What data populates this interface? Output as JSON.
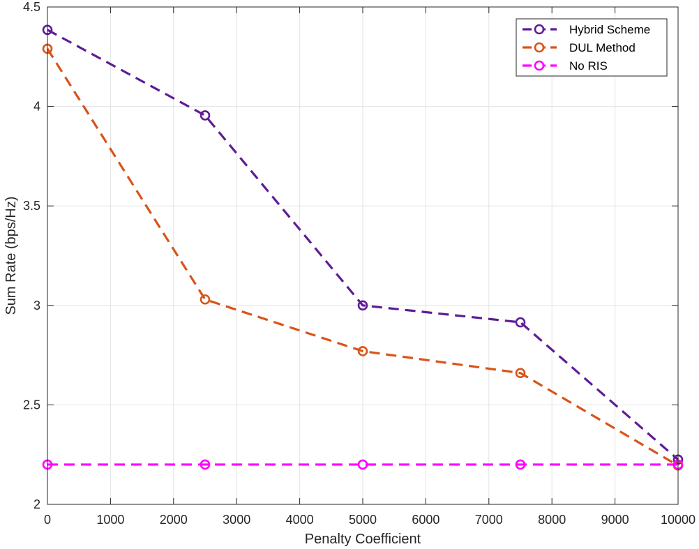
{
  "chart_data": {
    "type": "line",
    "title": "",
    "xlabel": "Penalty Coefficient",
    "ylabel": "Sum Rate (bps/Hz)",
    "xlim": [
      0,
      10000
    ],
    "ylim": [
      2,
      4.5
    ],
    "xticks": [
      0,
      1000,
      2000,
      3000,
      4000,
      5000,
      6000,
      7000,
      8000,
      9000,
      10000
    ],
    "xtick_labels": [
      "0",
      "1000",
      "2000",
      "3000",
      "4000",
      "5000",
      "6000",
      "7000",
      "8000",
      "9000",
      "10000"
    ],
    "yticks": [
      2,
      2.5,
      3,
      3.5,
      4,
      4.5
    ],
    "ytick_labels": [
      "2",
      "2.5",
      "3",
      "3.5",
      "4",
      "4.5"
    ],
    "grid": true,
    "legend_position": "top-right",
    "x": [
      0,
      2500,
      5000,
      7500,
      10000
    ],
    "series": [
      {
        "name": "Hybrid Scheme",
        "color": "#5E1C96",
        "line_style": "dashed",
        "marker": "circle",
        "values": [
          4.385,
          3.955,
          3.0,
          2.915,
          2.225
        ]
      },
      {
        "name": "DUL Method",
        "color": "#D95319",
        "line_style": "dashed",
        "marker": "circle",
        "values": [
          4.29,
          3.03,
          2.77,
          2.66,
          2.195
        ]
      },
      {
        "name": "No RIS",
        "color": "#FF00FF",
        "line_style": "dashed",
        "marker": "circle",
        "values": [
          2.2,
          2.2,
          2.2,
          2.2,
          2.2
        ]
      }
    ]
  }
}
